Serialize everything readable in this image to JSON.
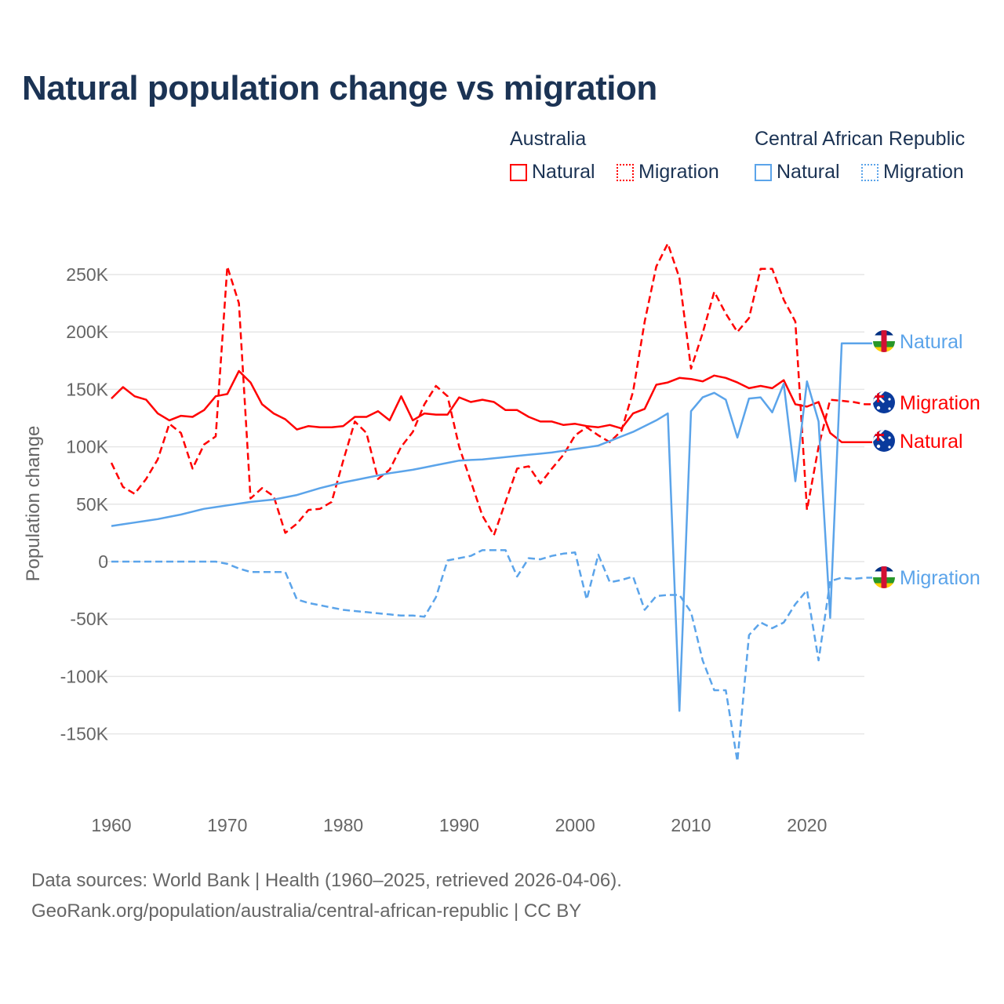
{
  "title": "Natural population change vs migration",
  "legend": {
    "groups": [
      {
        "name": "Australia",
        "items": [
          "Natural",
          "Migration"
        ]
      },
      {
        "name": "Central African Republic",
        "items": [
          "Natural",
          "Migration"
        ]
      }
    ]
  },
  "footer": {
    "line1": "Data sources: World Bank | Health (1960–2025, retrieved 2026-04-06).",
    "line2": "GeoRank.org/population/australia/central-african-republic | CC BY"
  },
  "chart_data": {
    "type": "line",
    "title": "Natural population change vs migration",
    "xlabel": "",
    "ylabel": "Population change",
    "xlim": [
      1960,
      2025
    ],
    "ylim": [
      -175000,
      280000
    ],
    "x_ticks": [
      "1960",
      "1970",
      "1980",
      "1990",
      "2000",
      "2010",
      "2020"
    ],
    "y_ticks": [
      {
        "v": 250000,
        "label": "250K"
      },
      {
        "v": 200000,
        "label": "200K"
      },
      {
        "v": 150000,
        "label": "150K"
      },
      {
        "v": 100000,
        "label": "100K"
      },
      {
        "v": 50000,
        "label": "50K"
      },
      {
        "v": 0,
        "label": "0"
      },
      {
        "v": -50000,
        "label": "-50K"
      },
      {
        "v": -100000,
        "label": "-100K"
      },
      {
        "v": -150000,
        "label": "-150K"
      }
    ],
    "grid": true,
    "legend_position": "top-right",
    "x_start": 1960,
    "series": [
      {
        "name": "Australia Natural",
        "end_label": "Natural",
        "color": "#ff0000",
        "dash": false,
        "flag": "australia",
        "values": [
          142,
          152,
          144,
          141,
          129,
          123,
          127,
          126,
          132,
          144,
          146,
          166,
          156,
          137,
          129,
          124,
          115,
          118,
          117,
          117,
          118,
          126,
          126,
          131,
          123,
          144,
          123,
          129,
          128,
          128,
          143,
          139,
          141,
          139,
          132,
          132,
          126,
          122,
          122,
          119,
          120,
          118,
          117,
          119,
          116,
          129,
          133,
          154,
          156,
          160,
          159,
          157,
          162,
          160,
          156,
          151,
          153,
          151,
          158,
          137,
          135,
          139,
          112,
          104,
          104,
          104
        ]
      },
      {
        "name": "Australia Migration",
        "end_label": "Migration",
        "color": "#ff0000",
        "dash": true,
        "flag": "australia",
        "values": [
          86,
          65,
          59,
          72,
          89,
          120,
          112,
          81,
          102,
          109,
          257,
          225,
          55,
          64,
          57,
          25,
          33,
          45,
          46,
          52,
          88,
          122,
          112,
          72,
          80,
          100,
          113,
          137,
          153,
          144,
          100,
          70,
          40,
          23,
          52,
          81,
          83,
          68,
          81,
          93,
          110,
          117,
          110,
          104,
          114,
          148,
          209,
          257,
          277,
          247,
          168,
          199,
          235,
          216,
          200,
          212,
          255,
          255,
          228,
          209,
          45,
          100,
          141,
          140,
          139,
          137
        ]
      },
      {
        "name": "Central African Republic Natural",
        "end_label": "Natural",
        "color": "#5ba4ea",
        "dash": false,
        "flag": "car",
        "values": [
          31,
          32.5,
          34,
          35.5,
          37,
          39,
          41,
          43.5,
          46,
          47.5,
          49,
          50.5,
          52,
          53,
          54,
          56,
          58,
          61,
          64,
          66.5,
          69,
          71,
          73,
          75,
          77,
          78.5,
          80,
          82,
          84,
          86,
          88,
          88.5,
          89,
          90,
          91,
          92,
          93,
          94,
          95,
          96.5,
          98,
          99.5,
          101,
          105,
          109,
          113,
          118,
          123,
          129,
          -130,
          131,
          143,
          147,
          141,
          108,
          142,
          143,
          130,
          155,
          70,
          157,
          122,
          -49,
          190,
          190,
          190
        ]
      },
      {
        "name": "Central African Republic Migration",
        "end_label": "Migration",
        "color": "#5ba4ea",
        "dash": true,
        "flag": "car",
        "values": [
          0,
          0,
          0,
          0,
          0,
          0,
          0,
          0,
          0,
          0,
          -2,
          -6,
          -9,
          -9,
          -9,
          -9,
          -33,
          -36,
          -38,
          -40,
          -42,
          -43,
          -44,
          -45,
          -46,
          -47,
          -47,
          -48,
          -31,
          1,
          3,
          5,
          10,
          10,
          10,
          -13,
          3,
          2,
          5,
          7,
          8,
          -33,
          6,
          -18,
          -16,
          -13,
          -42,
          -30,
          -29,
          -29,
          -44,
          -86,
          -112,
          -112,
          -174,
          -64,
          -53,
          -58,
          -53,
          -37,
          -25,
          -86,
          -17,
          -14,
          -15,
          -14
        ]
      }
    ],
    "value_unit": "thousands"
  }
}
